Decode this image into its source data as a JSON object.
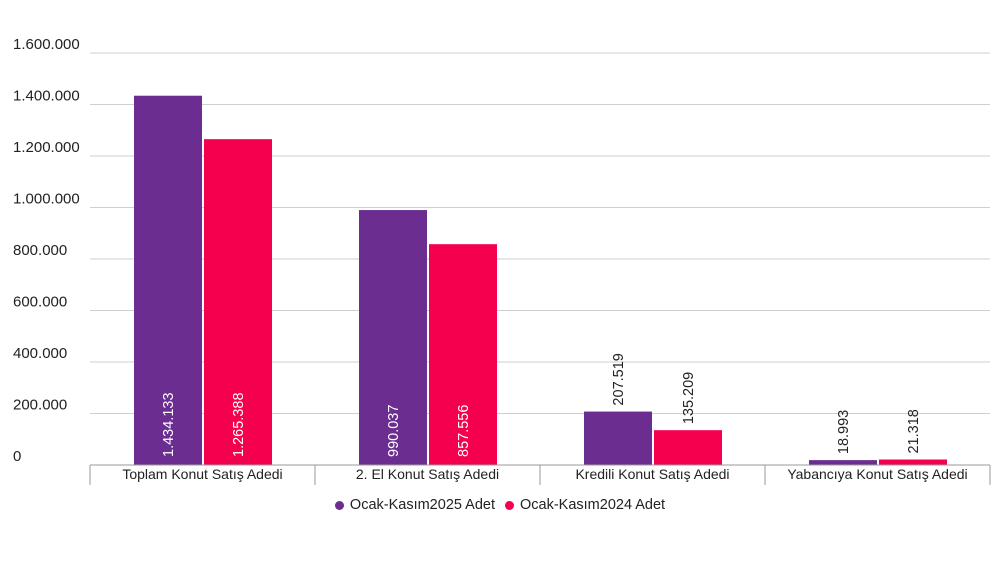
{
  "colors": {
    "series1": "#6C2D91",
    "series2": "#F5004F",
    "grid": "#cfcfcf",
    "axis": "#9a9a9a"
  },
  "chart_data": {
    "type": "bar",
    "categories": [
      "Toplam Konut Satış Adedi",
      "2. El Konut Satış Adedi",
      "Kredili Konut Satış Adedi",
      "Yabancıya Konut Satış Adedi"
    ],
    "series": [
      {
        "name": "Ocak-Kasım2025 Adet",
        "values": [
          1434133,
          990037,
          207519,
          18993
        ],
        "labels": [
          "1.434.133",
          "990.037",
          "207.519",
          "18.993"
        ]
      },
      {
        "name": "Ocak-Kasım2024 Adet",
        "values": [
          1265388,
          857556,
          135209,
          21318
        ],
        "labels": [
          "1.265.388",
          "857.556",
          "135.209",
          "21.318"
        ]
      }
    ],
    "ylim": [
      0,
      1600000
    ],
    "yticks": [
      0,
      200000,
      400000,
      600000,
      800000,
      1000000,
      1200000,
      1400000,
      1600000
    ],
    "ytick_labels": [
      "0",
      "200.000",
      "400.000",
      "600.000",
      "800.000",
      "1.000.000",
      "1.200.000",
      "1.400.000",
      "1.600.000"
    ],
    "grid": true,
    "legend_position": "bottom"
  }
}
